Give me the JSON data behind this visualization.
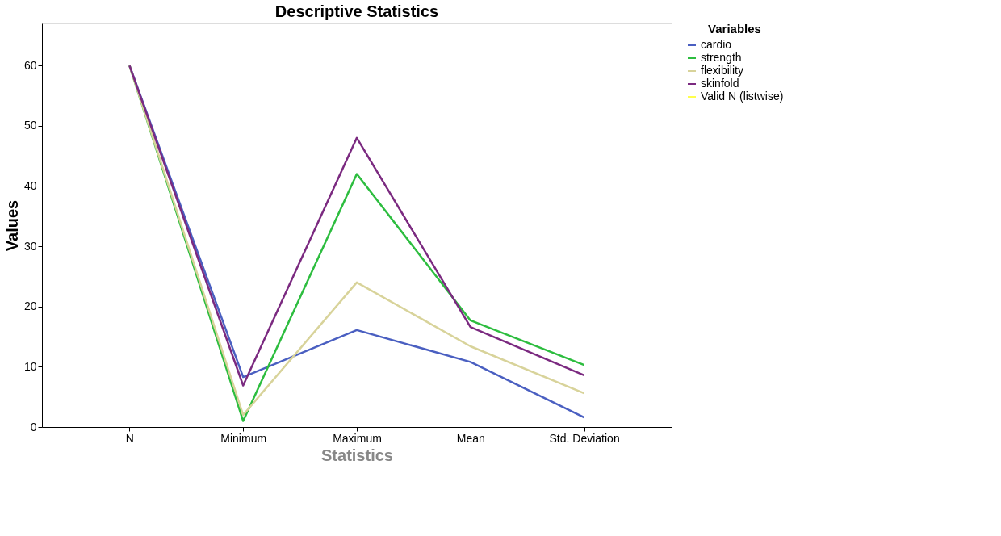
{
  "chart_data": {
    "type": "line",
    "title": "Descriptive Statistics",
    "xlabel": "Statistics",
    "ylabel": "Values",
    "legend_title": "Variables",
    "categories": [
      "N",
      "Minimum",
      "Maximum",
      "Mean",
      "Std. Deviation"
    ],
    "series": [
      {
        "name": "cardio",
        "color": "#4a5fc1",
        "values": [
          60,
          8.3,
          16.1,
          10.8,
          1.6
        ]
      },
      {
        "name": "strength",
        "color": "#2dbd3f",
        "values": [
          60,
          1.0,
          42,
          17.7,
          10.3
        ]
      },
      {
        "name": "flexibility",
        "color": "#d8d39a",
        "values": [
          60,
          2.0,
          24,
          13.4,
          5.6
        ]
      },
      {
        "name": "skinfold",
        "color": "#7b2a80",
        "values": [
          60,
          6.9,
          48,
          16.6,
          8.6
        ]
      },
      {
        "name": "Valid N (listwise)",
        "color": "#ffff4d",
        "values": [
          null,
          null,
          null,
          null,
          null
        ]
      }
    ],
    "ylim": [
      0,
      67
    ],
    "yticks": [
      0,
      10,
      20,
      30,
      40,
      50,
      60
    ],
    "grid": false,
    "legend": "top right",
    "marker": "none",
    "line_style": "solid"
  }
}
